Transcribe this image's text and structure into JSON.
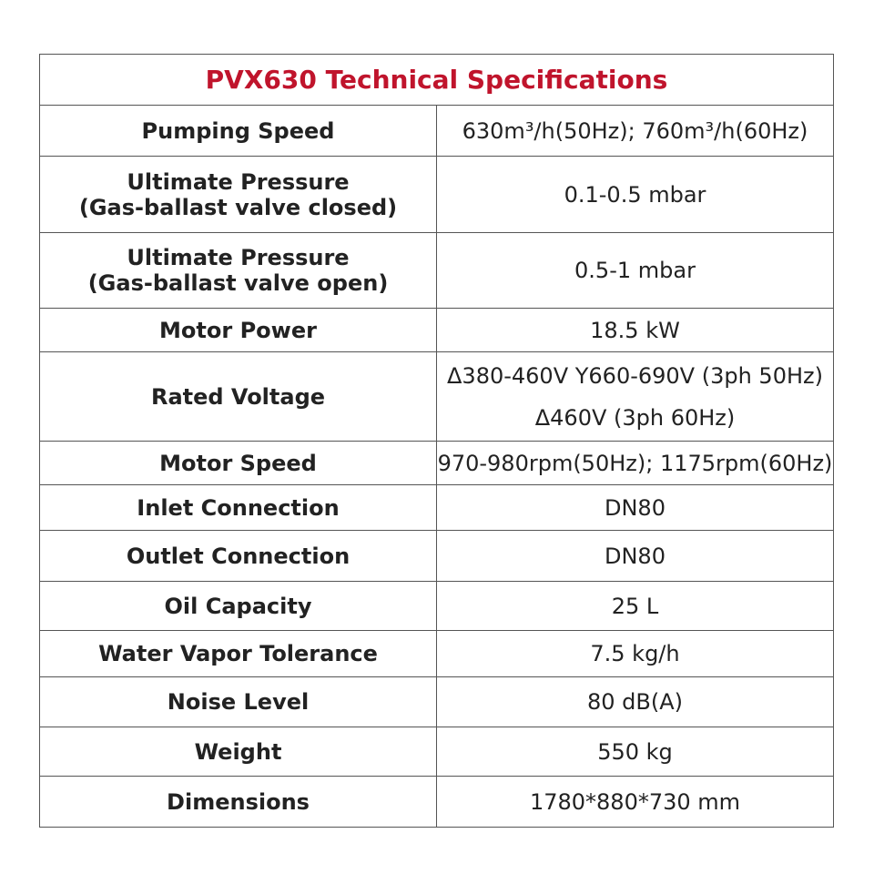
{
  "table": {
    "title": "PVX630 Technical Specifications",
    "rows": [
      [
        [
          "Pumping Speed"
        ],
        [
          "630m³/h(50Hz); 760m³/h(60Hz)"
        ]
      ],
      [
        [
          "Ultimate Pressure",
          "(Gas-ballast valve closed)"
        ],
        [
          "0.1-0.5 mbar"
        ]
      ],
      [
        [
          "Ultimate Pressure",
          "(Gas-ballast valve open)"
        ],
        [
          "0.5-1 mbar"
        ]
      ],
      [
        [
          "Motor Power"
        ],
        [
          "18.5 kW"
        ]
      ],
      [
        [
          "Rated Voltage"
        ],
        [
          "Δ380-460V Y660-690V (3ph 50Hz)",
          "Δ460V (3ph 60Hz)"
        ]
      ],
      [
        [
          "Motor Speed"
        ],
        [
          "970-980rpm(50Hz); 1175rpm(60Hz)"
        ]
      ],
      [
        [
          "Inlet Connection"
        ],
        [
          "DN80"
        ]
      ],
      [
        [
          "Outlet Connection"
        ],
        [
          "DN80"
        ]
      ],
      [
        [
          "Oil Capacity"
        ],
        [
          "25 L"
        ]
      ],
      [
        [
          "Water Vapor Tolerance"
        ],
        [
          "7.5 kg/h"
        ]
      ],
      [
        [
          "Noise Level"
        ],
        [
          "80 dB(A)"
        ]
      ],
      [
        [
          "Weight"
        ],
        [
          "550 kg"
        ]
      ],
      [
        [
          "Dimensions"
        ],
        [
          "1780*880*730 mm"
        ]
      ]
    ]
  }
}
